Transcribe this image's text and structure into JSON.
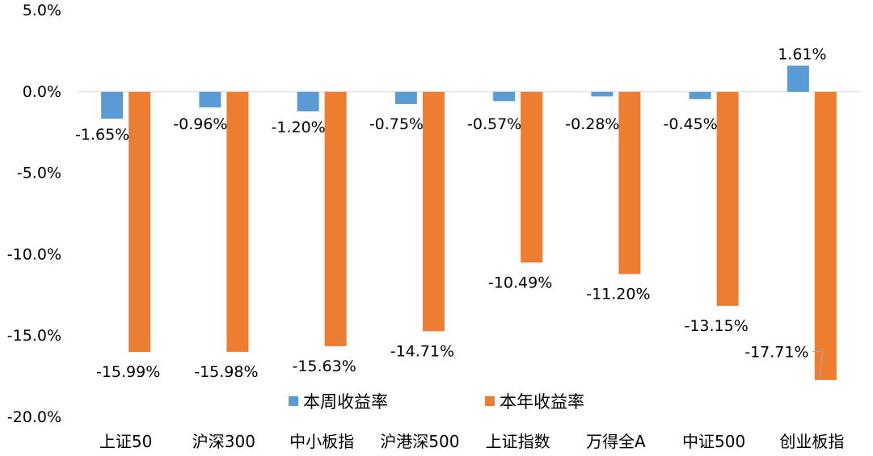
{
  "chart_data": {
    "type": "bar",
    "categories": [
      "上证50",
      "沪深300",
      "中小板指",
      "沪港深500",
      "上证指数",
      "万得全A",
      "中证500",
      "创业板指"
    ],
    "series": [
      {
        "name": "本周收益率",
        "color": "#5B9BD5",
        "values": [
          -1.65,
          -0.96,
          -1.2,
          -0.75,
          -0.57,
          -0.28,
          -0.45,
          1.61
        ],
        "labels": [
          "-1.65%",
          "-0.96%",
          "-1.20%",
          "-0.75%",
          "-0.57%",
          "-0.28%",
          "-0.45%",
          "1.61%"
        ]
      },
      {
        "name": "本年收益率",
        "color": "#ED7D31",
        "values": [
          -15.99,
          -15.98,
          -15.63,
          -14.71,
          -10.49,
          -11.2,
          -13.15,
          -17.71
        ],
        "labels": [
          "-15.99%",
          "-15.98%",
          "-15.63%",
          "-14.71%",
          "-10.49%",
          "-11.20%",
          "-13.15%",
          "-17.71%"
        ]
      }
    ],
    "y_ticks": [
      "5.0%",
      "0.0%",
      "-5.0%",
      "-10.0%",
      "-15.0%",
      "-20.0%"
    ],
    "ylim": [
      -20,
      5
    ],
    "grid": false,
    "legend_position": "bottom"
  }
}
